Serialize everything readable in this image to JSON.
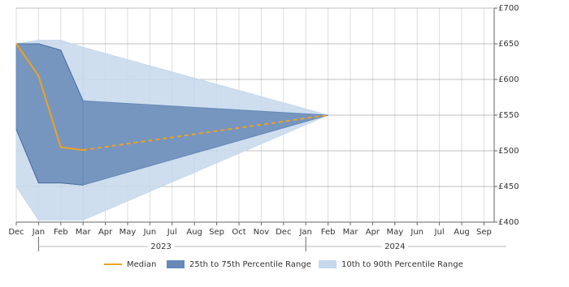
{
  "chart_data": {
    "type": "range-line",
    "categories": [
      "Dec",
      "Jan",
      "Feb",
      "Mar",
      "Apr",
      "May",
      "Jun",
      "Jul",
      "Aug",
      "Sep",
      "Oct",
      "Nov",
      "Dec",
      "Jan",
      "Feb",
      "Mar",
      "Apr",
      "May",
      "Jun",
      "Jul",
      "Aug",
      "Sep"
    ],
    "year_labels": [
      "2023",
      "2024"
    ],
    "ylim": [
      400,
      700
    ],
    "yticks": [
      {
        "value": 400,
        "label": "£400"
      },
      {
        "value": 450,
        "label": "£450"
      },
      {
        "value": 500,
        "label": "£500"
      },
      {
        "value": 550,
        "label": "£550"
      },
      {
        "value": 600,
        "label": "£600"
      },
      {
        "value": 650,
        "label": "£650"
      },
      {
        "value": 700,
        "label": "£700"
      }
    ],
    "grid": true,
    "series": [
      {
        "name": "10th to 90th Percentile Range",
        "kind": "band",
        "color": "#c5d8ec",
        "lower": [
          450,
          403,
          403,
          403,
          null,
          null,
          null,
          null,
          null,
          null,
          null,
          null,
          null,
          null,
          550,
          null,
          null,
          null,
          null,
          null,
          null,
          null
        ],
        "upper": [
          650,
          655,
          655,
          645,
          null,
          null,
          null,
          null,
          null,
          null,
          null,
          null,
          null,
          null,
          550,
          null,
          null,
          null,
          null,
          null,
          null,
          null
        ]
      },
      {
        "name": "25th to 75th Percentile Range",
        "kind": "band",
        "color": "#6689b7",
        "lower": [
          530,
          455,
          455,
          452,
          null,
          null,
          null,
          null,
          null,
          null,
          null,
          null,
          null,
          null,
          550,
          null,
          null,
          null,
          null,
          null,
          null,
          null
        ],
        "upper": [
          650,
          650,
          641,
          570,
          null,
          null,
          null,
          null,
          null,
          null,
          null,
          null,
          null,
          null,
          550,
          null,
          null,
          null,
          null,
          null,
          null,
          null
        ]
      },
      {
        "name": "Median",
        "kind": "line",
        "color": "#f0a020",
        "values": [
          650,
          605,
          505,
          501,
          null,
          null,
          null,
          null,
          null,
          null,
          null,
          null,
          null,
          null,
          550,
          null,
          null,
          null,
          null,
          null,
          null,
          null
        ]
      }
    ],
    "legend": "bottom"
  }
}
